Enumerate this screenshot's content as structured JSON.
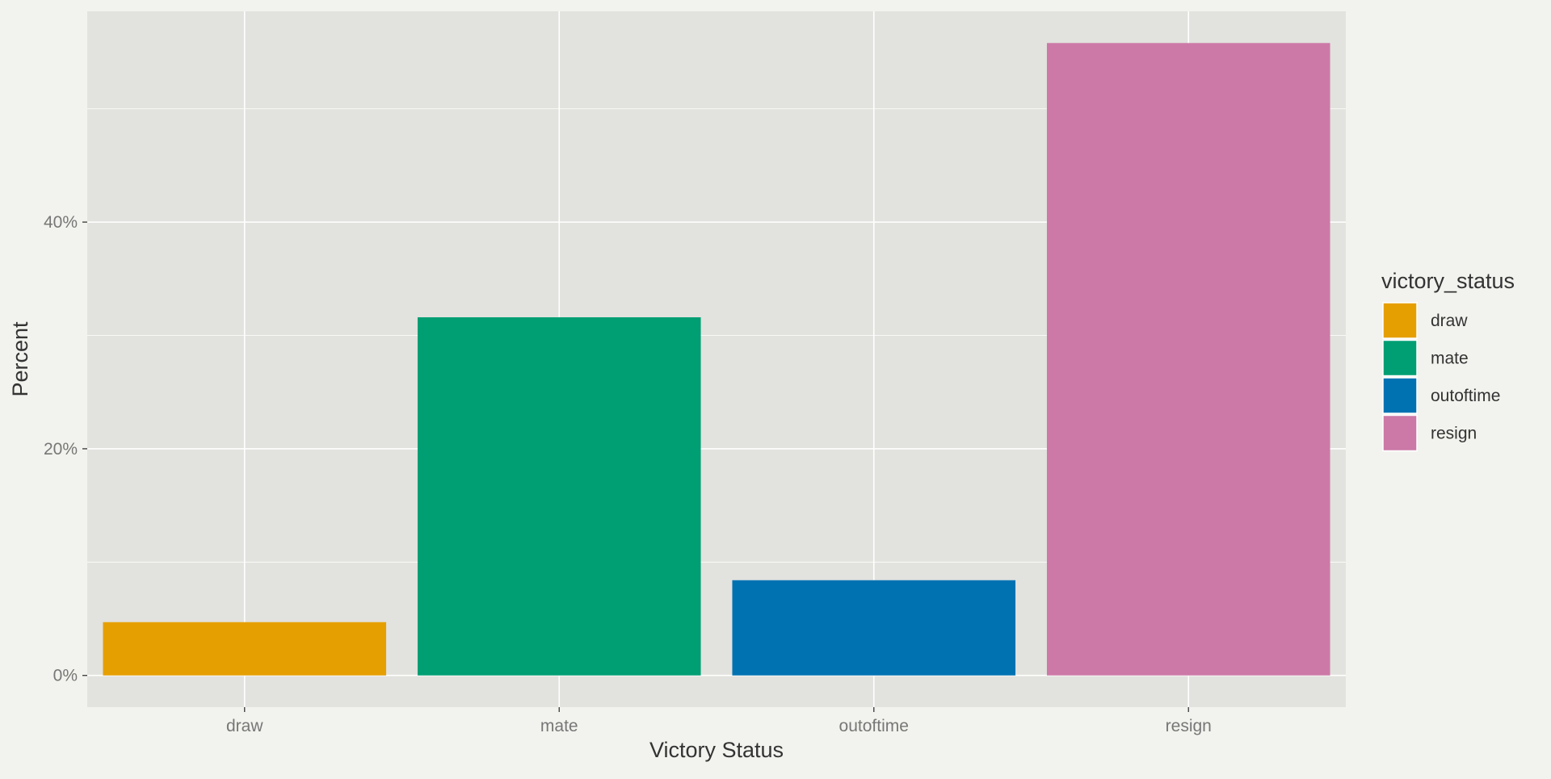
{
  "chart_data": {
    "type": "bar",
    "categories": [
      "draw",
      "mate",
      "outoftime",
      "resign"
    ],
    "values": [
      4.7,
      31.6,
      8.4,
      55.8
    ],
    "value_unit": "percent",
    "colors": [
      "#E69F00",
      "#009E73",
      "#0072B2",
      "#CC79A7"
    ],
    "xlabel": "Victory Status",
    "ylabel": "Percent",
    "ylim": [
      -2.8,
      58.6
    ],
    "y_ticks": [
      0,
      20,
      40
    ],
    "y_tick_labels": [
      "0%",
      "20%",
      "40%"
    ],
    "y_minor_ticks": [
      10,
      30,
      50
    ],
    "grid": true,
    "legend": {
      "title": "victory_status",
      "position": "right",
      "entries": [
        "draw",
        "mate",
        "outoftime",
        "resign"
      ]
    }
  },
  "theme": {
    "page_background": "#f2f2ee",
    "panel_background": "#e2e2de",
    "grid_color": "#ffffff",
    "tick_label_color": "#777777",
    "axis_title_color": "#333333"
  }
}
